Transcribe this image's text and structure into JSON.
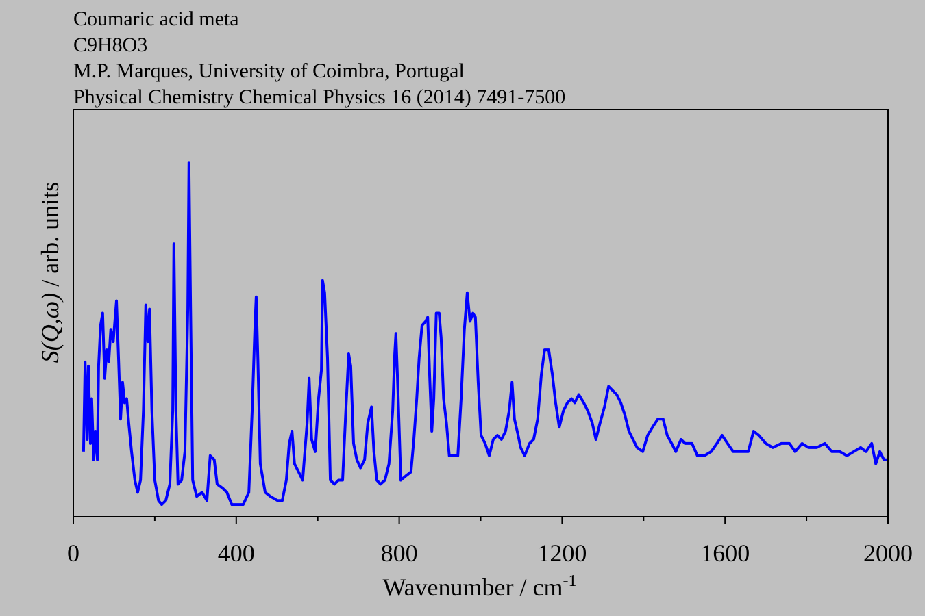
{
  "chart_data": {
    "type": "line",
    "title_lines": [
      "Coumaric acid meta",
      "C9H8O3",
      "M.P. Marques, University of Coimbra, Portugal",
      "Physical Chemistry Chemical Physics 16 (2014) 7491-7500"
    ],
    "xlabel": {
      "text": "Wavenumber / cm",
      "sup": "-1"
    },
    "ylabel": [
      {
        "text": "S(Q,ω)",
        "italic": true
      },
      {
        "text": " / arb. units",
        "italic": false
      }
    ],
    "xlim": [
      0,
      2000
    ],
    "xticks": [
      0,
      400,
      800,
      1200,
      1600,
      2000
    ],
    "xminorticks": [
      200,
      600,
      1000,
      1400,
      1800
    ],
    "ylim": [
      0,
      100
    ],
    "series": [
      {
        "name": "S(Q,ω)",
        "color": "#0000ff",
        "x": [
          25,
          29,
          34,
          37,
          42,
          45,
          50,
          54,
          59,
          62,
          67,
          72,
          77,
          82,
          87,
          92,
          98,
          106,
          111,
          116,
          121,
          126,
          131,
          136,
          143,
          151,
          158,
          165,
          172,
          178,
          183,
          187,
          193,
          200,
          209,
          217,
          227,
          237,
          244,
          247,
          252,
          257,
          266,
          274,
          281,
          284,
          288,
          293,
          303,
          316,
          328,
          336,
          346,
          353,
          367,
          377,
          389,
          400,
          417,
          431,
          439,
          446,
          449,
          453,
          459,
          471,
          484,
          501,
          513,
          523,
          530,
          537,
          543,
          553,
          563,
          574,
          579,
          585,
          594,
          602,
          609,
          612,
          617,
          624,
          631,
          641,
          651,
          661,
          669,
          676,
          681,
          688,
          696,
          705,
          715,
          723,
          732,
          738,
          745,
          754,
          765,
          775,
          784,
          789,
          792,
          797,
          804,
          816,
          829,
          836,
          843,
          849,
          856,
          865,
          870,
          875,
          880,
          885,
          891,
          898,
          903,
          909,
          916,
          923,
          933,
          944,
          952,
          960,
          967,
          974,
          981,
          987,
          994,
          1001,
          1011,
          1021,
          1031,
          1041,
          1051,
          1061,
          1070,
          1077,
          1083,
          1092,
          1098,
          1108,
          1120,
          1130,
          1140,
          1149,
          1157,
          1167,
          1176,
          1184,
          1193,
          1203,
          1213,
          1223,
          1231,
          1241,
          1253,
          1263,
          1274,
          1283,
          1293,
          1304,
          1314,
          1324,
          1334,
          1344,
          1354,
          1364,
          1374,
          1384,
          1398,
          1410,
          1422,
          1435,
          1448,
          1458,
          1469,
          1479,
          1492,
          1502,
          1519,
          1532,
          1549,
          1566,
          1580,
          1593,
          1606,
          1620,
          1637,
          1657,
          1670,
          1683,
          1700,
          1717,
          1738,
          1758,
          1772,
          1789,
          1805,
          1825,
          1845,
          1862,
          1882,
          1899,
          1916,
          1933,
          1946,
          1960,
          1970,
          1980,
          1990,
          2000
        ],
        "values": [
          16,
          38,
          19,
          37,
          18,
          29,
          14,
          21,
          14,
          37,
          47,
          50,
          34,
          41,
          38,
          46,
          43,
          53,
          39,
          24,
          33,
          28,
          29,
          23,
          16,
          9,
          6,
          9,
          26,
          52,
          43,
          51,
          26,
          9,
          4,
          3,
          4,
          8,
          26,
          67,
          26,
          8,
          9,
          16,
          51,
          87,
          51,
          9,
          5,
          6,
          4,
          15,
          14,
          8,
          7,
          6,
          3,
          3,
          3,
          6,
          26,
          47,
          54,
          39,
          13,
          6,
          5,
          4,
          4,
          9,
          18,
          21,
          13,
          11,
          9,
          23,
          34,
          19,
          16,
          29,
          36,
          58,
          55,
          39,
          9,
          8,
          9,
          9,
          26,
          40,
          37,
          18,
          14,
          12,
          14,
          23,
          27,
          16,
          9,
          8,
          9,
          13,
          26,
          40,
          45,
          31,
          9,
          10,
          11,
          19,
          29,
          39,
          47,
          48,
          49,
          34,
          21,
          29,
          50,
          50,
          44,
          29,
          23,
          15,
          15,
          15,
          29,
          46,
          55,
          48,
          50,
          49,
          33,
          20,
          18,
          15,
          19,
          20,
          19,
          21,
          26,
          33,
          24,
          20,
          17,
          15,
          18,
          19,
          24,
          35,
          41,
          41,
          35,
          28,
          22,
          26,
          28,
          29,
          28,
          30,
          28,
          26,
          23,
          19,
          23,
          27,
          32,
          31,
          30,
          28,
          25,
          21,
          19,
          17,
          16,
          20,
          22,
          24,
          24,
          20,
          18,
          16,
          19,
          18,
          18,
          15,
          15,
          16,
          18,
          20,
          18,
          16,
          16,
          16,
          21,
          20,
          18,
          17,
          18,
          18,
          16,
          18,
          17,
          17,
          18,
          16,
          16,
          15,
          16,
          17,
          16,
          18,
          13,
          16,
          14,
          14
        ]
      }
    ]
  }
}
